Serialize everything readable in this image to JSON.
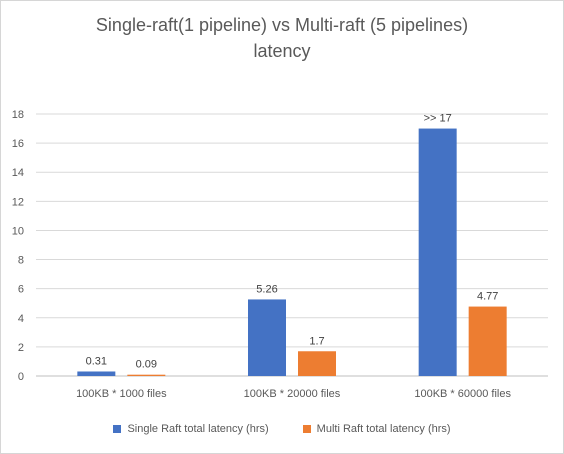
{
  "chart_data": {
    "type": "bar",
    "title_lines": [
      "Single-raft(1 pipeline) vs Multi-raft (5 pipelines)",
      "latency"
    ],
    "categories": [
      "100KB * 1000 files",
      "100KB * 20000 files",
      "100KB * 60000 files"
    ],
    "series": [
      {
        "name": "Single Raft total latency (hrs)",
        "color": "#4472C4",
        "values": [
          0.31,
          5.26,
          17
        ],
        "labels": [
          "0.31",
          "5.26",
          ">> 17"
        ]
      },
      {
        "name": "Multi Raft total latency (hrs)",
        "color": "#ED7D31",
        "values": [
          0.09,
          1.7,
          4.77
        ],
        "labels": [
          "0.09",
          "1.7",
          "4.77"
        ]
      }
    ],
    "ylim": [
      0,
      18
    ],
    "yticks": [
      0,
      2,
      4,
      6,
      8,
      10,
      12,
      14,
      16,
      18
    ],
    "grid": true,
    "legend_position": "bottom"
  }
}
